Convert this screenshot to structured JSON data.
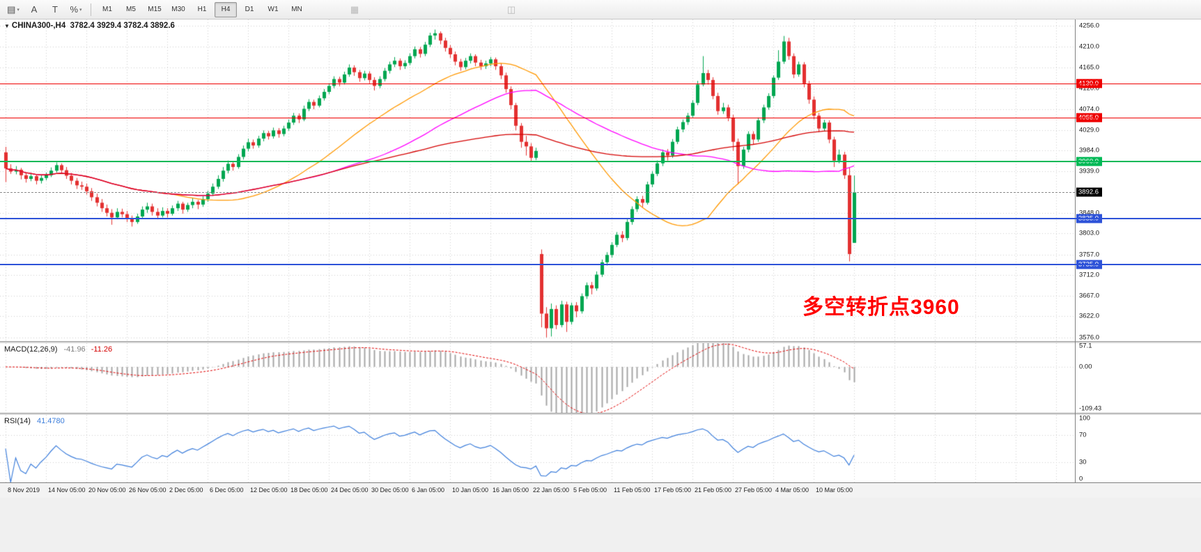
{
  "ui": {
    "toolbar": {
      "left_tools": [
        {
          "name": "chart-windows-icon",
          "glyph": "▤",
          "caret": true
        },
        {
          "name": "cursor-tool-icon",
          "glyph": "A",
          "caret": false
        },
        {
          "name": "text-tool-icon",
          "glyph": "T",
          "caret": false
        },
        {
          "name": "line-studies-icon",
          "glyph": "%",
          "caret": true
        }
      ],
      "timeframes": [
        "M1",
        "M5",
        "M15",
        "M30",
        "H1",
        "H4",
        "D1",
        "W1",
        "MN"
      ],
      "active_timeframe": "H4",
      "disabled_tools": [
        {
          "name": "indicators-icon",
          "glyph": "▦",
          "gap": 52
        },
        {
          "name": "templates-icon",
          "glyph": "◫",
          "gap": 196
        }
      ]
    },
    "header": {
      "symbol_tf": "CHINA300-,H4",
      "ohlc": "3782.4 3929.4 3782.4 3892.6"
    },
    "macd_label": {
      "name": "MACD(12,26,9)",
      "main": "-41.96",
      "signal": "-11.26"
    },
    "rsi_label": {
      "name": "RSI(14)",
      "value": "41.4780"
    },
    "annotation": {
      "text": "多空转折点3960",
      "color": "#ff0000"
    }
  },
  "chart_data": {
    "type": "candlestick",
    "symbol": "CHINA300-",
    "timeframe": "H4",
    "price_range": [
      3568,
      4270
    ],
    "price_axis_ticks": [
      "4256.0",
      "4210.0",
      "4165.0",
      "4120.0",
      "4074.0",
      "4029.0",
      "3984.0",
      "3939.0",
      "3848.0",
      "3803.0",
      "3757.0",
      "3712.0",
      "3667.0",
      "3622.0",
      "3576.0"
    ],
    "bid": {
      "value": 3892.6,
      "label": "3892.6",
      "color": "#000000"
    },
    "hlines": [
      {
        "value": 4130.0,
        "label": "4130.0",
        "color": "#ee0000",
        "width": 1
      },
      {
        "value": 4055.0,
        "label": "4055.0",
        "color": "#ee0000",
        "width": 1
      },
      {
        "value": 3960.0,
        "label": "3960.0",
        "color": "#00b956",
        "width": 2
      },
      {
        "value": 3835.0,
        "label": "3835.0",
        "color": "#2d52d8",
        "width": 2
      },
      {
        "value": 3735.0,
        "label": "3735.0",
        "color": "#2d52d8",
        "width": 2
      }
    ],
    "overlays": [
      {
        "name": "ma-fast",
        "type": "sma",
        "period": 34,
        "color": "#ff9800"
      },
      {
        "name": "ma-mid",
        "type": "sma",
        "period": 60,
        "color": "#ff00ff"
      },
      {
        "name": "ma-slow",
        "type": "sma",
        "period": 120,
        "color": "#d40000"
      }
    ],
    "sub_indicators": [
      {
        "name": "MACD",
        "params": [
          12,
          26,
          9
        ],
        "range": [
          -120,
          62
        ],
        "axis": [
          {
            "label": "57.1",
            "value": 57.1
          },
          {
            "label": "0.00",
            "value": 0
          },
          {
            "label": "-109.43",
            "value": -109.43
          }
        ]
      },
      {
        "name": "RSI",
        "params": [
          14
        ],
        "range": [
          0,
          100
        ],
        "levels": [
          70,
          30
        ],
        "axis": [
          {
            "label": "100",
            "value": 100
          },
          {
            "label": "70",
            "value": 70
          },
          {
            "label": "30",
            "value": 30
          },
          {
            "label": "0",
            "value": 0
          }
        ]
      }
    ],
    "colors": {
      "up": "#00a650",
      "down": "#e33030",
      "grid": "#cfcfcf",
      "macd_hist": "#a6a6a6",
      "macd_signal": "#e00000",
      "rsi": "#3d7edb"
    },
    "x_labels": [
      "8 Nov 2019",
      "14 Nov 05:00",
      "20 Nov 05:00",
      "26 Nov 05:00",
      "2 Dec 05:00",
      "6 Dec 05:00",
      "12 Dec 05:00",
      "18 Dec 05:00",
      "24 Dec 05:00",
      "30 Dec 05:00",
      "6 Jan 05:00",
      "10 Jan 05:00",
      "16 Jan 05:00",
      "22 Jan 05:00",
      "5 Feb 05:00",
      "11 Feb 05:00",
      "17 Feb 05:00",
      "21 Feb 05:00",
      "27 Feb 05:00",
      "4 Mar 05:00",
      "10 Mar 05:00"
    ],
    "candles": [
      [
        3980,
        3992,
        3915,
        3945
      ],
      [
        3945,
        3954,
        3933,
        3938
      ],
      [
        3938,
        3950,
        3932,
        3942
      ],
      [
        3942,
        3946,
        3921,
        3930
      ],
      [
        3930,
        3936,
        3914,
        3922
      ],
      [
        3922,
        3934,
        3917,
        3928
      ],
      [
        3928,
        3932,
        3910,
        3918
      ],
      [
        3918,
        3930,
        3912,
        3924
      ],
      [
        3924,
        3936,
        3919,
        3930
      ],
      [
        3930,
        3947,
        3926,
        3940
      ],
      [
        3940,
        3958,
        3936,
        3952
      ],
      [
        3952,
        3956,
        3934,
        3941
      ],
      [
        3941,
        3948,
        3922,
        3929
      ],
      [
        3929,
        3935,
        3910,
        3918
      ],
      [
        3918,
        3924,
        3900,
        3908
      ],
      [
        3908,
        3916,
        3898,
        3905
      ],
      [
        3905,
        3912,
        3888,
        3895
      ],
      [
        3895,
        3902,
        3874,
        3882
      ],
      [
        3882,
        3890,
        3862,
        3870
      ],
      [
        3870,
        3878,
        3850,
        3858
      ],
      [
        3858,
        3866,
        3840,
        3848
      ],
      [
        3848,
        3856,
        3822,
        3838
      ],
      [
        3838,
        3858,
        3834,
        3850
      ],
      [
        3850,
        3857,
        3838,
        3845
      ],
      [
        3845,
        3852,
        3828,
        3836
      ],
      [
        3836,
        3842,
        3818,
        3828
      ],
      [
        3828,
        3846,
        3824,
        3840
      ],
      [
        3840,
        3862,
        3836,
        3855
      ],
      [
        3855,
        3870,
        3848,
        3862
      ],
      [
        3862,
        3868,
        3842,
        3850
      ],
      [
        3850,
        3858,
        3834,
        3842
      ],
      [
        3842,
        3860,
        3838,
        3852
      ],
      [
        3852,
        3858,
        3838,
        3846
      ],
      [
        3846,
        3864,
        3842,
        3858
      ],
      [
        3858,
        3874,
        3852,
        3868
      ],
      [
        3868,
        3872,
        3846,
        3855
      ],
      [
        3855,
        3870,
        3850,
        3865
      ],
      [
        3865,
        3880,
        3858,
        3872
      ],
      [
        3872,
        3876,
        3856,
        3866
      ],
      [
        3866,
        3884,
        3861,
        3878
      ],
      [
        3878,
        3896,
        3872,
        3890
      ],
      [
        3890,
        3912,
        3885,
        3905
      ],
      [
        3905,
        3930,
        3900,
        3922
      ],
      [
        3922,
        3948,
        3916,
        3940
      ],
      [
        3940,
        3962,
        3934,
        3955
      ],
      [
        3955,
        3960,
        3940,
        3948
      ],
      [
        3948,
        3976,
        3944,
        3970
      ],
      [
        3970,
        3995,
        3964,
        3988
      ],
      [
        3988,
        4010,
        3982,
        4002
      ],
      [
        4002,
        4008,
        3988,
        3995
      ],
      [
        3995,
        4016,
        3990,
        4010
      ],
      [
        4010,
        4028,
        4004,
        4022
      ],
      [
        4022,
        4027,
        4008,
        4015
      ],
      [
        4015,
        4034,
        4010,
        4028
      ],
      [
        4028,
        4033,
        4012,
        4020
      ],
      [
        4020,
        4038,
        4015,
        4032
      ],
      [
        4032,
        4052,
        4027,
        4045
      ],
      [
        4045,
        4066,
        4040,
        4060
      ],
      [
        4060,
        4065,
        4044,
        4052
      ],
      [
        4052,
        4082,
        4048,
        4075
      ],
      [
        4075,
        4096,
        4070,
        4090
      ],
      [
        4090,
        4095,
        4074,
        4082
      ],
      [
        4082,
        4104,
        4078,
        4098
      ],
      [
        4098,
        4118,
        4093,
        4112
      ],
      [
        4112,
        4131,
        4107,
        4125
      ],
      [
        4125,
        4146,
        4120,
        4140
      ],
      [
        4140,
        4145,
        4124,
        4132
      ],
      [
        4132,
        4156,
        4128,
        4150
      ],
      [
        4150,
        4172,
        4145,
        4165
      ],
      [
        4165,
        4170,
        4147,
        4155
      ],
      [
        4155,
        4160,
        4134,
        4142
      ],
      [
        4142,
        4158,
        4137,
        4152
      ],
      [
        4152,
        4157,
        4130,
        4138
      ],
      [
        4138,
        4144,
        4115,
        4125
      ],
      [
        4125,
        4146,
        4120,
        4140
      ],
      [
        4140,
        4164,
        4135,
        4158
      ],
      [
        4158,
        4178,
        4152,
        4172
      ],
      [
        4172,
        4188,
        4166,
        4180
      ],
      [
        4180,
        4185,
        4160,
        4168
      ],
      [
        4168,
        4181,
        4162,
        4175
      ],
      [
        4175,
        4196,
        4170,
        4190
      ],
      [
        4190,
        4211,
        4185,
        4205
      ],
      [
        4205,
        4210,
        4187,
        4195
      ],
      [
        4195,
        4221,
        4190,
        4215
      ],
      [
        4215,
        4241,
        4210,
        4235
      ],
      [
        4235,
        4248,
        4226,
        4240
      ],
      [
        4240,
        4244,
        4216,
        4224
      ],
      [
        4224,
        4230,
        4200,
        4208
      ],
      [
        4208,
        4214,
        4186,
        4194
      ],
      [
        4194,
        4200,
        4170,
        4178
      ],
      [
        4178,
        4184,
        4158,
        4166
      ],
      [
        4166,
        4186,
        4161,
        4180
      ],
      [
        4180,
        4196,
        4174,
        4190
      ],
      [
        4190,
        4194,
        4168,
        4176
      ],
      [
        4176,
        4182,
        4160,
        4168
      ],
      [
        4168,
        4180,
        4162,
        4174
      ],
      [
        4174,
        4188,
        4168,
        4183
      ],
      [
        4183,
        4187,
        4160,
        4168
      ],
      [
        4168,
        4174,
        4140,
        4148
      ],
      [
        4148,
        4154,
        4110,
        4118
      ],
      [
        4118,
        4124,
        4074,
        4083
      ],
      [
        4083,
        4088,
        4028,
        4038
      ],
      [
        4038,
        4044,
        3990,
        4003
      ],
      [
        4003,
        4016,
        3973,
        3993
      ],
      [
        3993,
        4000,
        3960,
        3968
      ],
      [
        3968,
        3990,
        3963,
        3983
      ],
      [
        3758,
        3768,
        3598,
        3628
      ],
      [
        3628,
        3642,
        3576,
        3596
      ],
      [
        3596,
        3650,
        3578,
        3638
      ],
      [
        3638,
        3646,
        3594,
        3603
      ],
      [
        3603,
        3656,
        3598,
        3648
      ],
      [
        3648,
        3654,
        3588,
        3610
      ],
      [
        3610,
        3652,
        3604,
        3646
      ],
      [
        3646,
        3653,
        3620,
        3633
      ],
      [
        3633,
        3672,
        3628,
        3666
      ],
      [
        3666,
        3696,
        3660,
        3690
      ],
      [
        3690,
        3697,
        3670,
        3683
      ],
      [
        3683,
        3720,
        3678,
        3713
      ],
      [
        3713,
        3746,
        3708,
        3740
      ],
      [
        3740,
        3762,
        3733,
        3756
      ],
      [
        3756,
        3784,
        3750,
        3778
      ],
      [
        3778,
        3806,
        3773,
        3800
      ],
      [
        3800,
        3808,
        3784,
        3793
      ],
      [
        3793,
        3834,
        3788,
        3828
      ],
      [
        3828,
        3862,
        3822,
        3856
      ],
      [
        3856,
        3884,
        3850,
        3878
      ],
      [
        3878,
        3885,
        3860,
        3870
      ],
      [
        3870,
        3916,
        3866,
        3910
      ],
      [
        3910,
        3939,
        3904,
        3933
      ],
      [
        3933,
        3962,
        3928,
        3956
      ],
      [
        3956,
        3986,
        3950,
        3980
      ],
      [
        3980,
        3987,
        3962,
        3973
      ],
      [
        3973,
        4009,
        3968,
        4003
      ],
      [
        4003,
        4036,
        3998,
        4030
      ],
      [
        4030,
        4052,
        4024,
        4046
      ],
      [
        4046,
        4066,
        4040,
        4060
      ],
      [
        4060,
        4094,
        4056,
        4088
      ],
      [
        4088,
        4136,
        4083,
        4128
      ],
      [
        4128,
        4190,
        4124,
        4153
      ],
      [
        4153,
        4160,
        4128,
        4138
      ],
      [
        4138,
        4144,
        4096,
        4103
      ],
      [
        4103,
        4110,
        4062,
        4070
      ],
      [
        4070,
        4088,
        4064,
        4078
      ],
      [
        4078,
        4084,
        4048,
        4056
      ],
      [
        4056,
        4062,
        3983,
        4003
      ],
      [
        4003,
        4010,
        3910,
        3950
      ],
      [
        3950,
        3992,
        3944,
        3986
      ],
      [
        3986,
        4026,
        3980,
        4020
      ],
      [
        4020,
        4026,
        3998,
        4008
      ],
      [
        4008,
        4056,
        4003,
        4050
      ],
      [
        4050,
        4084,
        4044,
        4078
      ],
      [
        4078,
        4109,
        4073,
        4103
      ],
      [
        4103,
        4148,
        4098,
        4143
      ],
      [
        4143,
        4203,
        4138,
        4178
      ],
      [
        4178,
        4234,
        4173,
        4222
      ],
      [
        4222,
        4230,
        4182,
        4190
      ],
      [
        4190,
        4196,
        4142,
        4150
      ],
      [
        4150,
        4178,
        4145,
        4172
      ],
      [
        4172,
        4177,
        4122,
        4130
      ],
      [
        4130,
        4136,
        4086,
        4095
      ],
      [
        4095,
        4102,
        4052,
        4060
      ],
      [
        4060,
        4066,
        4024,
        4032
      ],
      [
        4032,
        4051,
        4027,
        4045
      ],
      [
        4045,
        4050,
        4000,
        4008
      ],
      [
        4008,
        4014,
        3948,
        3962
      ],
      [
        3962,
        3986,
        3956,
        3975
      ],
      [
        3975,
        3981,
        3922,
        3930
      ],
      [
        3930,
        3948,
        3742,
        3758
      ],
      [
        3782.4,
        3929.4,
        3782.4,
        3892.6
      ]
    ]
  }
}
